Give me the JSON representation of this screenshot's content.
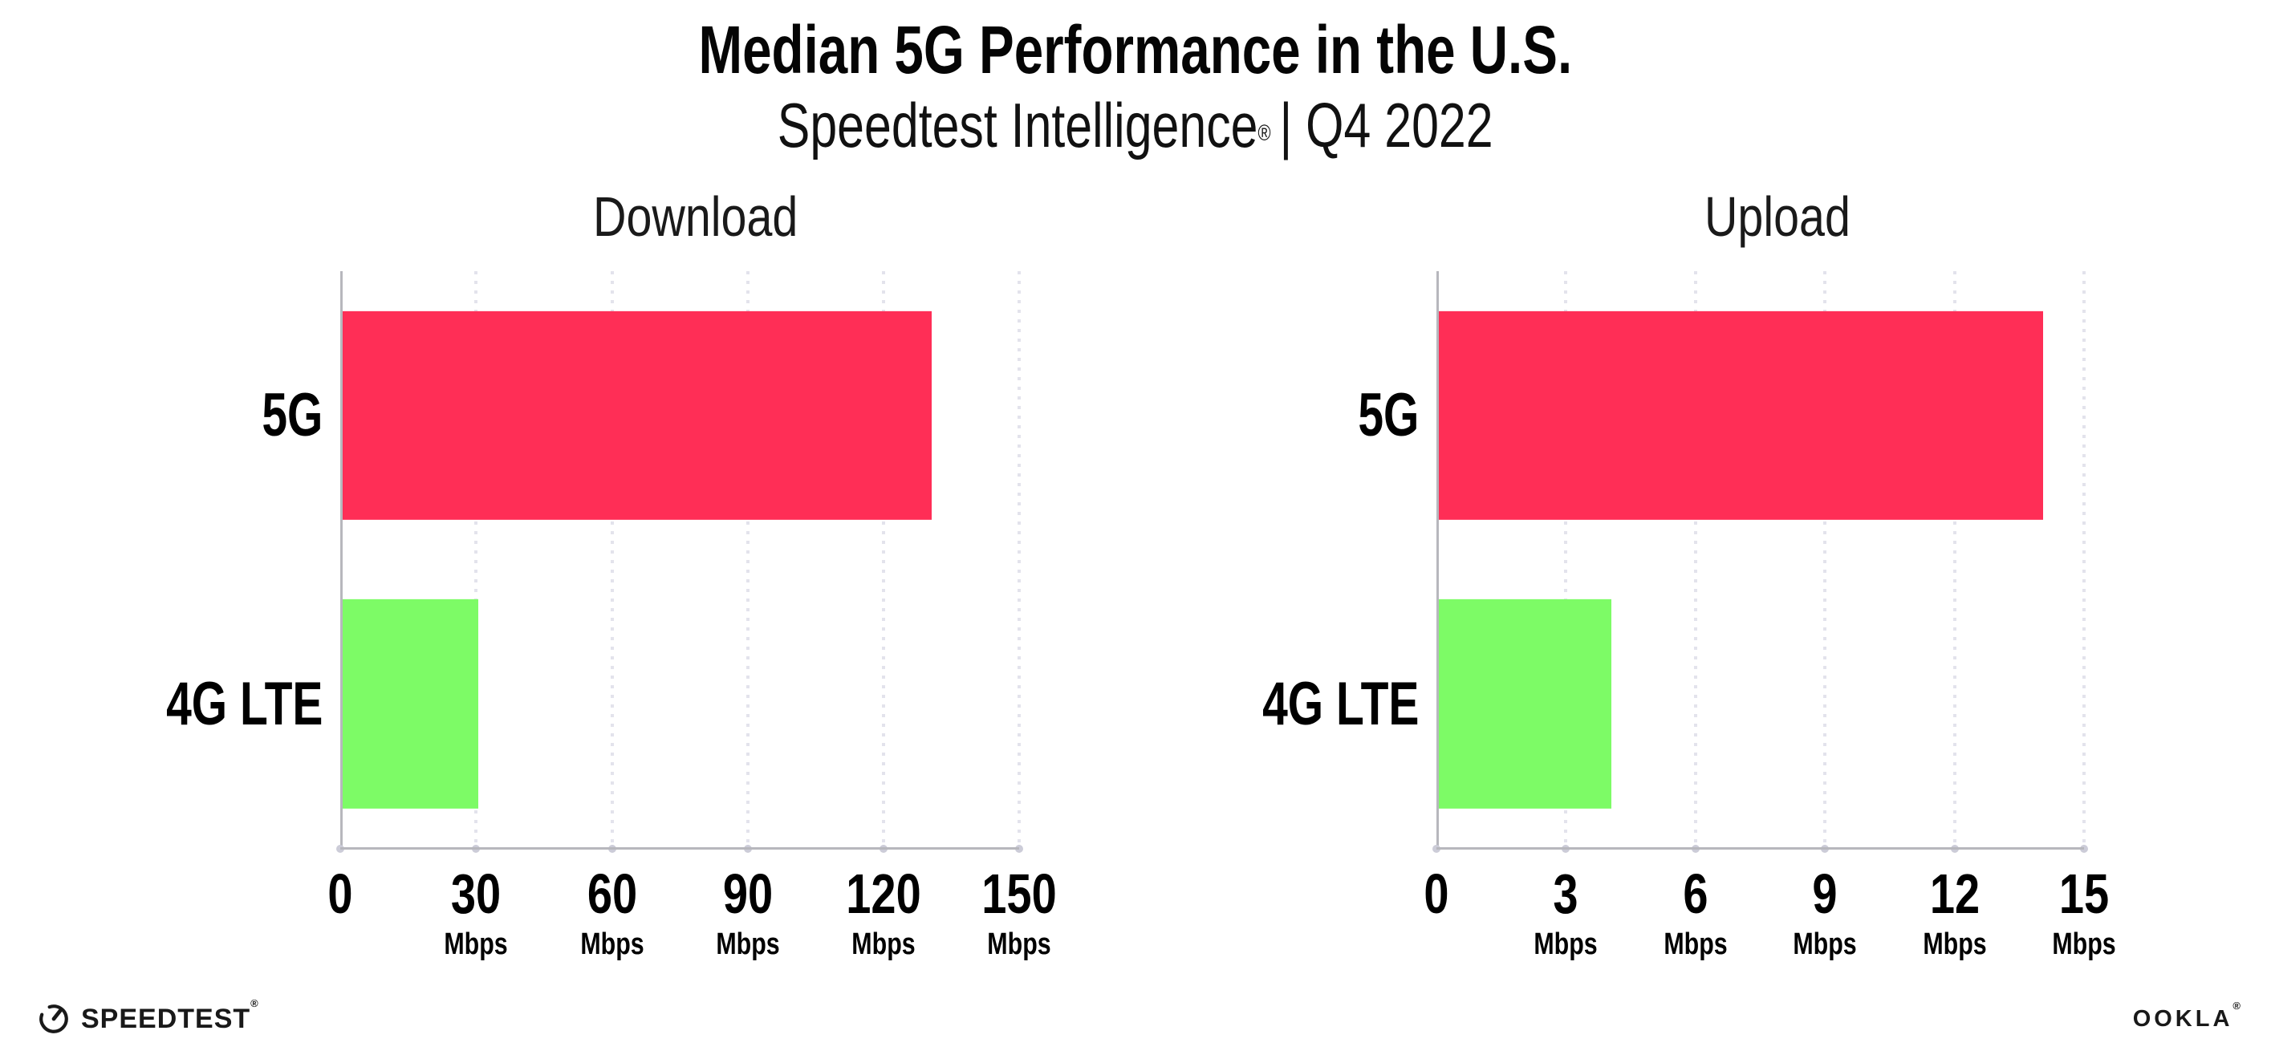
{
  "header": {
    "title": "Median 5G Performance in the U.S.",
    "subtitle_brand": "Speedtest Intelligence",
    "subtitle_reg": "®",
    "subtitle_rest": "| Q4 2022"
  },
  "chart_data": [
    {
      "type": "bar",
      "orientation": "horizontal",
      "title": "Download",
      "categories": [
        "5G",
        "4G LTE"
      ],
      "values": [
        130,
        30
      ],
      "values_unit": "Mbps",
      "bar_colors": [
        "#FF2E56",
        "#7DFB66"
      ],
      "ticks": [
        0,
        30,
        60,
        90,
        120,
        150
      ],
      "tick_unit": "Mbps",
      "xlim": [
        0,
        157
      ],
      "grid": "dotted-vertical",
      "legend": "none"
    },
    {
      "type": "bar",
      "orientation": "horizontal",
      "title": "Upload",
      "categories": [
        "5G",
        "4G LTE"
      ],
      "values": [
        14,
        4
      ],
      "values_unit": "Mbps",
      "bar_colors": [
        "#FF2E56",
        "#7DFB66"
      ],
      "ticks": [
        0,
        3,
        6,
        9,
        12,
        15
      ],
      "tick_unit": "Mbps",
      "xlim": [
        0,
        15.8
      ],
      "grid": "dotted-vertical",
      "legend": "none"
    }
  ],
  "colors": {
    "bar_5g": "#FF2E56",
    "bar_4g_lte": "#7DFB66",
    "background": "#ffffff"
  },
  "footer": {
    "speedtest_wordmark": "SPEEDTEST",
    "speedtest_mark": "®",
    "ookla_wordmark": "OOKLA",
    "ookla_mark": "®"
  }
}
